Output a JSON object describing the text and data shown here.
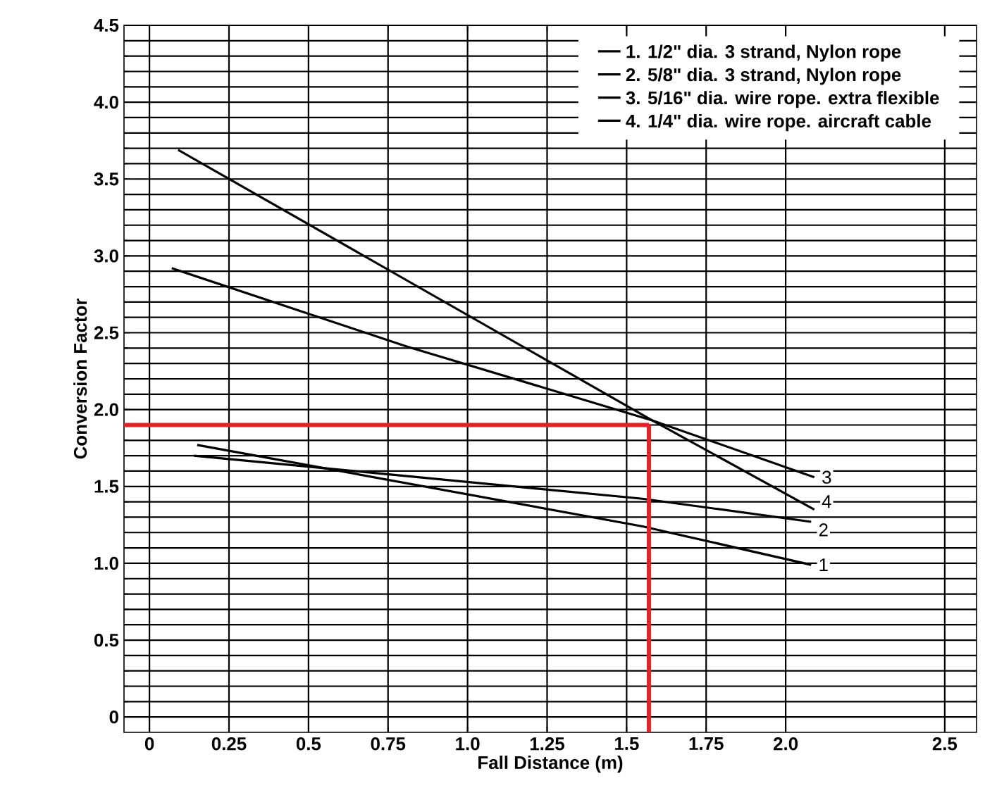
{
  "chart_data": {
    "type": "line",
    "xlabel": "Fall Distance (m)",
    "ylabel": "Conversion Factor",
    "xlim": [
      -0.08,
      2.6
    ],
    "ylim": [
      -0.1,
      4.5
    ],
    "xticks": [
      0,
      0.25,
      0.5,
      0.75,
      {
        "value": 1.0,
        "label": "1.0"
      },
      1.25,
      1.5,
      1.75,
      {
        "value": 2.0,
        "label": "2.0"
      },
      2.5
    ],
    "yticks": [
      0,
      0.5,
      {
        "value": 1.0,
        "label": "1.0"
      },
      1.5,
      {
        "value": 2.0,
        "label": "2.0"
      },
      2.5,
      {
        "value": 3.0,
        "label": "3.0"
      },
      3.5,
      {
        "value": 4.0,
        "label": "4.0"
      },
      4.5
    ],
    "grid": true,
    "legend": "top right",
    "marker": "none",
    "line_style": "solid",
    "series": [
      {
        "name": "1.   1/2\" dia. 3 strand, Nylon rope",
        "color": "#000000",
        "x": [
          0.15,
          1.55,
          2.08
        ],
        "values": [
          1.77,
          1.24,
          0.99
        ]
      },
      {
        "name": "2.   5/8\" dia. 3 strand, Nylon rope",
        "color": "#000000",
        "x": [
          0.14,
          1.55,
          2.08
        ],
        "values": [
          1.7,
          1.42,
          1.27
        ]
      },
      {
        "name": "3.   5/16\" dia. wire rope. extra flexible",
        "color": "#000000",
        "x": [
          0.07,
          0.81,
          1.58,
          2.09
        ],
        "values": [
          2.92,
          2.41,
          1.93,
          1.56
        ]
      },
      {
        "name": "4.   1/4\" dia. wire rope. aircraft cable",
        "color": "#000000",
        "x": [
          0.09,
          1.58,
          2.09
        ],
        "values": [
          3.69,
          1.93,
          1.35
        ]
      }
    ],
    "annotations": [
      "1",
      "2",
      "3",
      "4"
    ],
    "ref_lines": [
      {
        "axis": "y",
        "value": 1.9,
        "color": "#e8202a"
      },
      {
        "axis": "x",
        "value": 1.57,
        "color": "#e8202a"
      }
    ]
  }
}
